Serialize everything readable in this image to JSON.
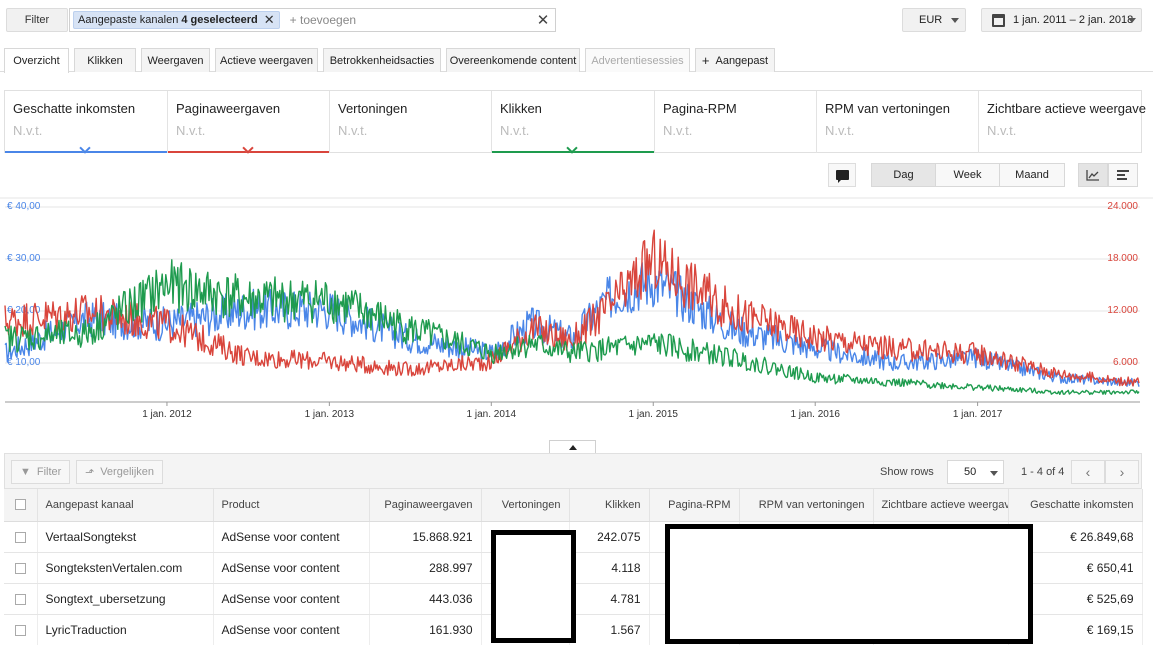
{
  "topbar": {
    "filter_label": "Filter",
    "chip_text": "Aangepaste kanalen",
    "chip_count": "4 geselecteerd",
    "add_label": "+ toevoegen",
    "currency": "EUR",
    "date_range": "1 jan. 2011 – 2 jan. 2018"
  },
  "tabs": [
    {
      "label": "Overzicht"
    },
    {
      "label": "Klikken"
    },
    {
      "label": "Weergaven"
    },
    {
      "label": "Actieve weergaven"
    },
    {
      "label": "Betrokkenheidsacties"
    },
    {
      "label": "Overeenkomende content"
    },
    {
      "label": "Advertentiesessies"
    },
    {
      "label": "Aangepast"
    }
  ],
  "metrics": [
    {
      "title": "Geschatte inkomsten",
      "value": "N.v.t.",
      "color": "#4a86e8"
    },
    {
      "title": "Paginaweergaven",
      "value": "N.v.t.",
      "color": "#d9453c"
    },
    {
      "title": "Vertoningen",
      "value": "N.v.t.",
      "color": ""
    },
    {
      "title": "Klikken",
      "value": "N.v.t.",
      "color": "#1e9b4e"
    },
    {
      "title": "Pagina-RPM",
      "value": "N.v.t.",
      "color": ""
    },
    {
      "title": "RPM van vertoningen",
      "value": "N.v.t.",
      "color": ""
    },
    {
      "title": "Zichtbare actieve weergave",
      "value": "N.v.t.",
      "color": ""
    }
  ],
  "controls": {
    "periods": [
      "Dag",
      "Week",
      "Maand"
    ],
    "active_period": "Dag"
  },
  "chart_data": {
    "type": "line",
    "x_ticks": [
      "1 jan. 2012",
      "1 jan. 2013",
      "1 jan. 2014",
      "1 jan. 2015",
      "1 jan. 2016",
      "1 jan. 2017"
    ],
    "y_left_ticks": [
      "€ 40,00",
      "€ 30,00",
      "€ 20,00",
      "€ 10,00"
    ],
    "y_right_ticks": [
      "24.000",
      "18.000",
      "12.000",
      "6.000"
    ],
    "y_left_range": [
      0,
      40
    ],
    "y_right_range": [
      0,
      24000
    ],
    "x_range": [
      "2011-01-01",
      "2018-01-02"
    ],
    "grid": true,
    "series": [
      {
        "color": "#4a86e8",
        "axis": "left",
        "x": [
          "2011-01",
          "2011-07",
          "2012-01",
          "2012-07",
          "2013-01",
          "2013-07",
          "2014-01",
          "2014-04",
          "2014-07",
          "2014-10",
          "2015-01",
          "2015-07",
          "2016-01",
          "2016-07",
          "2017-01",
          "2017-07",
          "2017-12"
        ],
        "values": [
          10,
          17,
          16,
          19,
          19,
          13,
          10,
          16,
          13,
          22,
          25,
          15,
          11,
          8,
          9,
          5,
          4
        ]
      },
      {
        "color": "#d9453c",
        "axis": "right",
        "x": [
          "2011-01",
          "2011-07",
          "2012-01",
          "2012-07",
          "2013-01",
          "2013-07",
          "2014-01",
          "2014-04",
          "2014-07",
          "2014-10",
          "2015-01",
          "2015-07",
          "2016-01",
          "2016-07",
          "2017-01",
          "2017-07",
          "2017-12"
        ],
        "values": [
          10000,
          11000,
          9500,
          5500,
          5000,
          4000,
          5000,
          9000,
          7500,
          12000,
          17500,
          11000,
          8000,
          6500,
          6000,
          3500,
          2500
        ]
      },
      {
        "color": "#1e9b4e",
        "axis": "left",
        "x": [
          "2011-01",
          "2011-07",
          "2012-01",
          "2012-07",
          "2013-01",
          "2013-07",
          "2014-01",
          "2014-04",
          "2014-07",
          "2014-10",
          "2015-01",
          "2015-07",
          "2016-01",
          "2016-07",
          "2017-01",
          "2017-07",
          "2017-12"
        ],
        "values": [
          13,
          14,
          24,
          21,
          21,
          15,
          10,
          12,
          10,
          11,
          12,
          9,
          5,
          4,
          3,
          2,
          2
        ]
      }
    ]
  },
  "table": {
    "toolbar": {
      "filter_label": "Filter",
      "compare_label": "Vergelijken",
      "rows_label": "Show rows",
      "rows_value": "50",
      "page_info": "1 - 4 of 4"
    },
    "headers": [
      "Aangepast kanaal",
      "Product",
      "Paginaweergaven",
      "Vertoningen",
      "Klikken",
      "Pagina-RPM",
      "RPM van vertoningen",
      "Zichtbare actieve weergave",
      "Geschatte inkomsten"
    ],
    "rows": [
      {
        "channel": "VertaalSongtekst",
        "product": "AdSense voor content",
        "views": "15.868.921",
        "clicks": "242.075",
        "income": "€ 26.849,68"
      },
      {
        "channel": "SongtekstenVertalen.com",
        "product": "AdSense voor content",
        "views": "288.997",
        "clicks": "4.118",
        "income": "€ 650,41"
      },
      {
        "channel": "Songtext_ubersetzung",
        "product": "AdSense voor content",
        "views": "443.036",
        "clicks": "4.781",
        "income": "€ 525,69"
      },
      {
        "channel": "LyricTraduction",
        "product": "AdSense voor content",
        "views": "161.930",
        "clicks": "1.567",
        "income": "€ 169,15"
      }
    ]
  }
}
